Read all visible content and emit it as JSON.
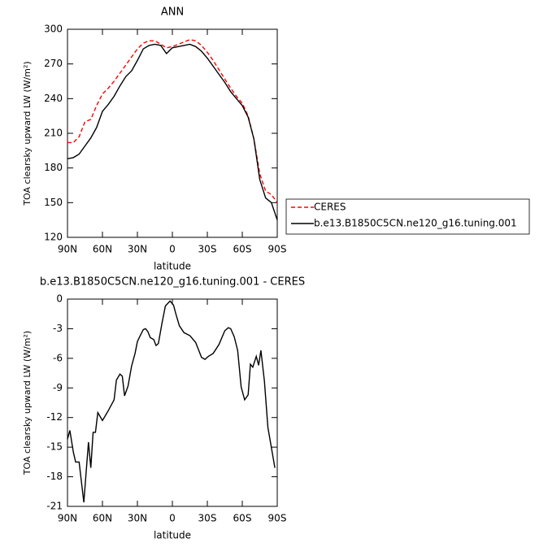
{
  "chart_data": [
    {
      "type": "line",
      "title": "ANN",
      "xlabel": "latitude",
      "ylabel": "TOA clearsky upward LW (W/m²)",
      "x": [
        90,
        85,
        80,
        75,
        70,
        65,
        60,
        55,
        50,
        45,
        40,
        35,
        30,
        25,
        20,
        15,
        10,
        5,
        0,
        -5,
        -10,
        -15,
        -20,
        -25,
        -30,
        -35,
        -40,
        -45,
        -50,
        -55,
        -60,
        -65,
        -70,
        -75,
        -80,
        -85,
        -90
      ],
      "series": [
        {
          "name": "CERES",
          "color": "#ff0000",
          "linestyle": "dashed",
          "values": [
            202,
            202,
            207,
            220,
            222,
            234,
            244,
            249,
            255,
            262,
            269,
            276,
            283,
            288,
            290,
            290,
            287,
            284,
            285,
            287,
            289,
            291,
            290,
            286,
            280,
            273,
            265,
            257,
            249,
            242,
            236,
            225,
            205,
            175,
            160,
            157,
            150
          ]
        },
        {
          "name": "b.e13.B1850C5CN.ne120_g16.tuning.001",
          "color": "#000000",
          "linestyle": "solid",
          "values": [
            188,
            189,
            192,
            199,
            206,
            215,
            229,
            235,
            242,
            251,
            259,
            264,
            273,
            283,
            286,
            287,
            286,
            279,
            284,
            285,
            286,
            287,
            285,
            281,
            275,
            268,
            261,
            254,
            246,
            240,
            234,
            224,
            205,
            170,
            154,
            150,
            135
          ]
        }
      ],
      "xlim": [
        90,
        -90
      ],
      "xticks": [
        {
          "value": 90,
          "label": "90N"
        },
        {
          "value": 60,
          "label": "60N"
        },
        {
          "value": 30,
          "label": "30N"
        },
        0,
        {
          "value": -30,
          "label": "30S"
        },
        {
          "value": -60,
          "label": "60S"
        },
        {
          "value": -90,
          "label": "90S"
        }
      ],
      "ylim": [
        120,
        300
      ],
      "yticks": [
        120,
        150,
        180,
        210,
        240,
        270,
        300
      ],
      "legend": "right"
    },
    {
      "type": "line",
      "title": "b.e13.B1850C5CN.ne120_g16.tuning.001 - CERES",
      "xlabel": "latitude",
      "ylabel": "TOA clearsky upward LW (W/m²)",
      "x": [
        90,
        88,
        85,
        83,
        80,
        76,
        72,
        70,
        68,
        66,
        64,
        60,
        55,
        50,
        48,
        45,
        43,
        41,
        38,
        35,
        32,
        30,
        28,
        25,
        23,
        21,
        19,
        16,
        14,
        12,
        9,
        6,
        2,
        -1,
        -3,
        -6,
        -10,
        -15,
        -20,
        -25,
        -28,
        -31,
        -35,
        -40,
        -45,
        -48,
        -50,
        -53,
        -56,
        -59,
        -62,
        -65,
        -67,
        -69,
        -72,
        -74,
        -76,
        -79,
        -82,
        -88
      ],
      "series": [
        {
          "color": "#000000",
          "linestyle": "solid",
          "values": [
            -14.2,
            -13.3,
            -15.5,
            -16.5,
            -16.5,
            -20.6,
            -14.5,
            -17.1,
            -13.5,
            -13.5,
            -11.5,
            -12.3,
            -11.3,
            -10.2,
            -8.2,
            -7.6,
            -7.8,
            -9.8,
            -8.8,
            -6.8,
            -5.5,
            -4.3,
            -3.8,
            -3.1,
            -3.0,
            -3.3,
            -3.9,
            -4.1,
            -4.7,
            -4.5,
            -2.5,
            -0.7,
            -0.2,
            -0.6,
            -1.5,
            -2.7,
            -3.4,
            -3.7,
            -4.4,
            -5.9,
            -6.1,
            -5.8,
            -5.5,
            -4.6,
            -3.2,
            -2.9,
            -3.0,
            -3.8,
            -5.2,
            -8.9,
            -10.2,
            -9.7,
            -6.6,
            -6.9,
            -5.8,
            -6.7,
            -5.2,
            -8.3,
            -13.0,
            -17.1
          ]
        }
      ],
      "xlim": [
        90,
        -90
      ],
      "xticks": [
        {
          "value": 90,
          "label": "90N"
        },
        {
          "value": 60,
          "label": "60N"
        },
        {
          "value": 30,
          "label": "30N"
        },
        0,
        {
          "value": -30,
          "label": "30S"
        },
        {
          "value": -60,
          "label": "60S"
        },
        {
          "value": -90,
          "label": "90S"
        }
      ],
      "ylim": [
        -21,
        0
      ],
      "yticks": [
        -21,
        -18,
        -15,
        -12,
        -9,
        -6,
        -3,
        0
      ]
    }
  ]
}
